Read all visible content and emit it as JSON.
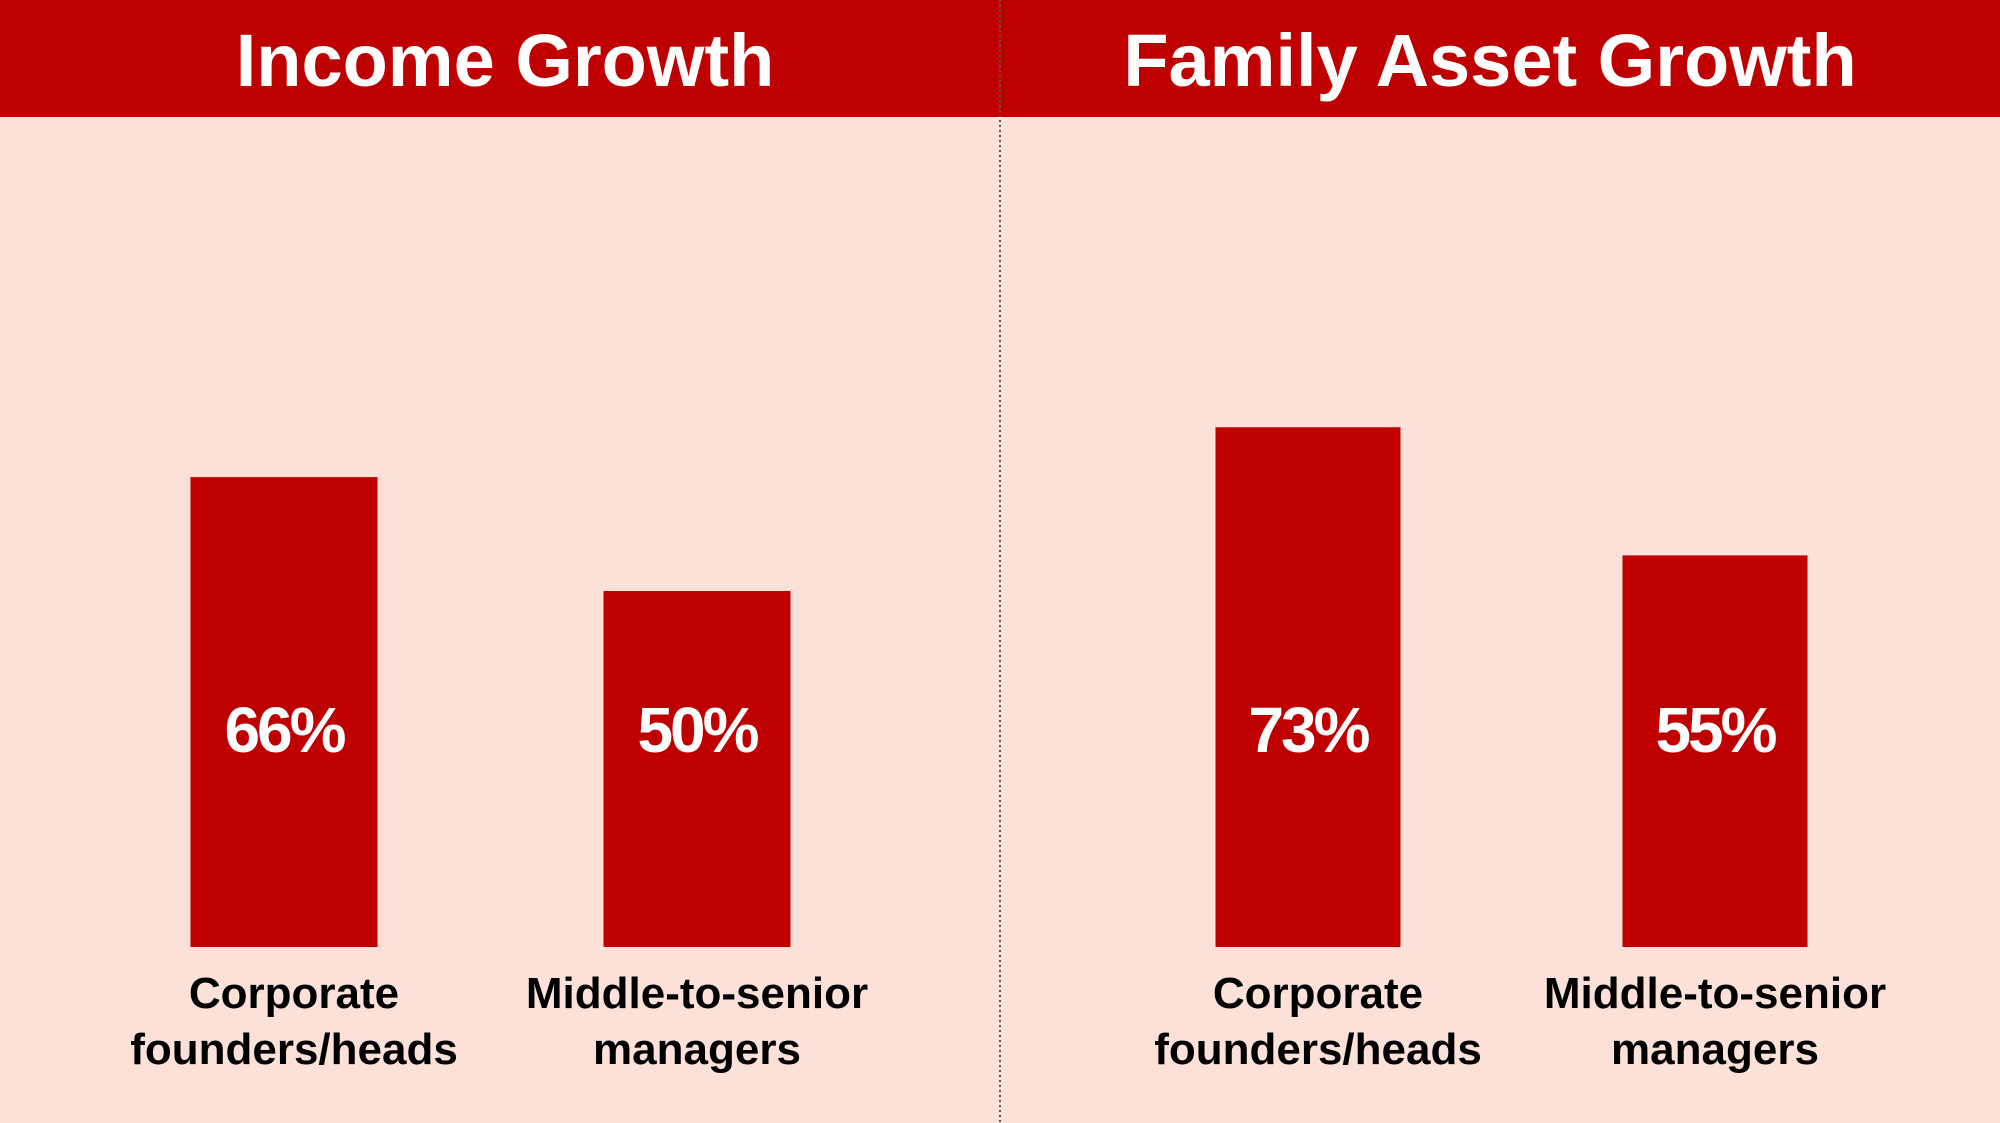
{
  "colors": {
    "bar": "#BF0000",
    "header": "#BF0000",
    "background": "#FBE1D7",
    "divider": "#555555"
  },
  "chart_data": [
    {
      "type": "bar",
      "title": "Income Growth",
      "categories": [
        [
          "Corporate",
          "founders/heads"
        ],
        [
          "Middle-to-senior",
          "managers"
        ]
      ],
      "values": [
        66,
        50
      ],
      "data_labels": [
        "66%",
        "50%"
      ],
      "ylim": [
        0,
        100
      ],
      "grid": false,
      "legend": "none"
    },
    {
      "type": "bar",
      "title": "Family Asset Growth",
      "categories": [
        [
          "Corporate",
          "founders/heads"
        ],
        [
          "Middle-to-senior",
          "managers"
        ]
      ],
      "values": [
        73,
        55
      ],
      "data_labels": [
        "73%",
        "55%"
      ],
      "ylim": [
        0,
        100
      ],
      "grid": false,
      "legend": "none"
    }
  ]
}
